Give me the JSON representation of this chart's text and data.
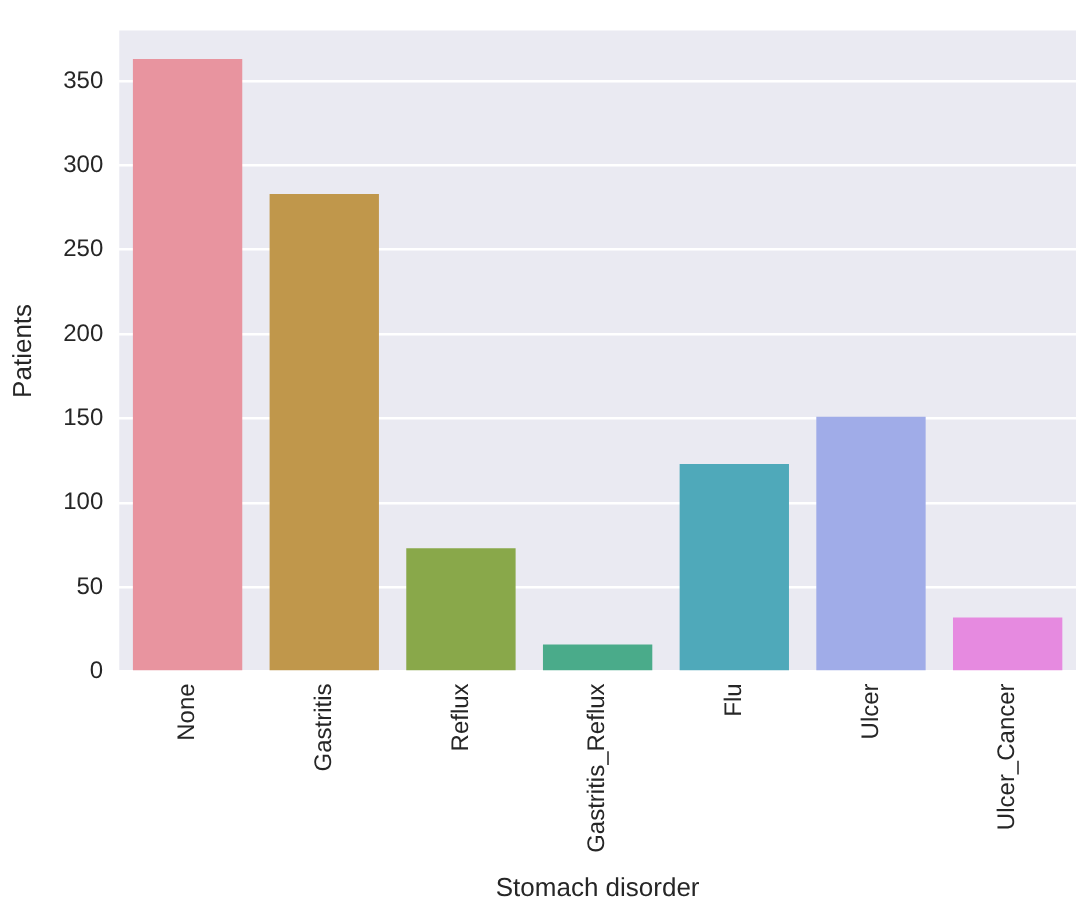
{
  "chart_data": {
    "type": "bar",
    "xlabel": "Stomach disorder",
    "ylabel": "Patients",
    "categories": [
      "None",
      "Gastritis",
      "Reflux",
      "Gastritis_Reflux",
      "Flu",
      "Ulcer",
      "Ulcer_Cancer"
    ],
    "values": [
      363,
      283,
      73,
      16,
      123,
      151,
      32
    ],
    "colors": [
      "#e8949f",
      "#c0974b",
      "#89a84a",
      "#4aab8a",
      "#4fa9ba",
      "#a0ace8",
      "#e68ae0"
    ],
    "ylim": [
      0,
      380
    ],
    "yticks": [
      0,
      50,
      100,
      150,
      200,
      250,
      300,
      350
    ],
    "grid": "y",
    "legend": false
  }
}
